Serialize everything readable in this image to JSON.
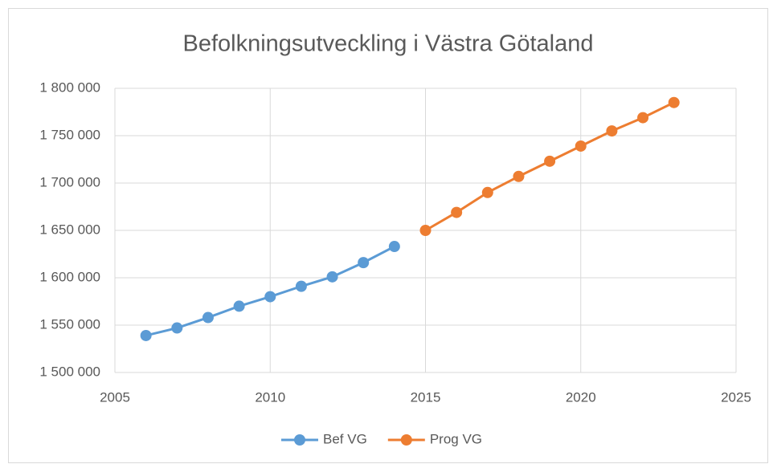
{
  "chart_data": {
    "type": "line",
    "title": "Befolkningsutveckling i Västra Götaland",
    "x": [
      2006,
      2007,
      2008,
      2009,
      2010,
      2011,
      2012,
      2013,
      2014,
      2015,
      2016,
      2017,
      2018,
      2019,
      2020,
      2021,
      2022,
      2023
    ],
    "series": [
      {
        "name": "Bef VG",
        "color": "#5b9bd5",
        "values": [
          1539000,
          1547000,
          1558000,
          1570000,
          1580000,
          1591000,
          1601000,
          1616000,
          1633000,
          null,
          null,
          null,
          null,
          null,
          null,
          null,
          null,
          null
        ]
      },
      {
        "name": "Prog VG",
        "color": "#ed7d31",
        "values": [
          null,
          null,
          null,
          null,
          null,
          null,
          null,
          null,
          null,
          1650000,
          1669000,
          1690000,
          1707000,
          1723000,
          1739000,
          1755000,
          1769000,
          1785000
        ]
      }
    ],
    "xlim": [
      2005,
      2025
    ],
    "xticks": [
      2005,
      2010,
      2015,
      2020,
      2025
    ],
    "ylim": [
      1500000,
      1800000
    ],
    "yticks": [
      {
        "value": 1500000,
        "label": "1 500 000"
      },
      {
        "value": 1550000,
        "label": "1 550 000"
      },
      {
        "value": 1600000,
        "label": "1 600 000"
      },
      {
        "value": 1650000,
        "label": "1 650 000"
      },
      {
        "value": 1700000,
        "label": "1 700 000"
      },
      {
        "value": 1750000,
        "label": "1 750 000"
      },
      {
        "value": 1800000,
        "label": "1 800 000"
      }
    ],
    "grid": true,
    "legend": "bottom"
  }
}
